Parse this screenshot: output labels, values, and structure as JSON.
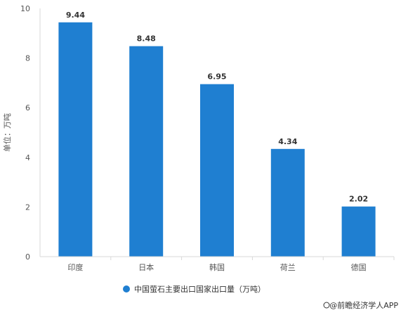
{
  "chart_data": {
    "type": "bar",
    "categories": [
      "印度",
      "日本",
      "韩国",
      "荷兰",
      "德国"
    ],
    "series": [
      {
        "name": "中国萤石主要出口国家出口量（万吨）",
        "values": [
          9.44,
          8.48,
          6.95,
          4.34,
          2.02
        ]
      }
    ],
    "data_labels": [
      "9.44",
      "8.48",
      "6.95",
      "4.34",
      "2.02"
    ],
    "ylabel": "单位：万吨",
    "xlabel": "",
    "ylim": [
      0,
      10
    ],
    "y_ticks": [
      "0",
      "2",
      "4",
      "6",
      "8",
      "10"
    ],
    "grid": false,
    "legend_position": "bottom",
    "bar_color": "#1f7fd1"
  },
  "credit": {
    "text": "@前瞻经济学人APP"
  }
}
